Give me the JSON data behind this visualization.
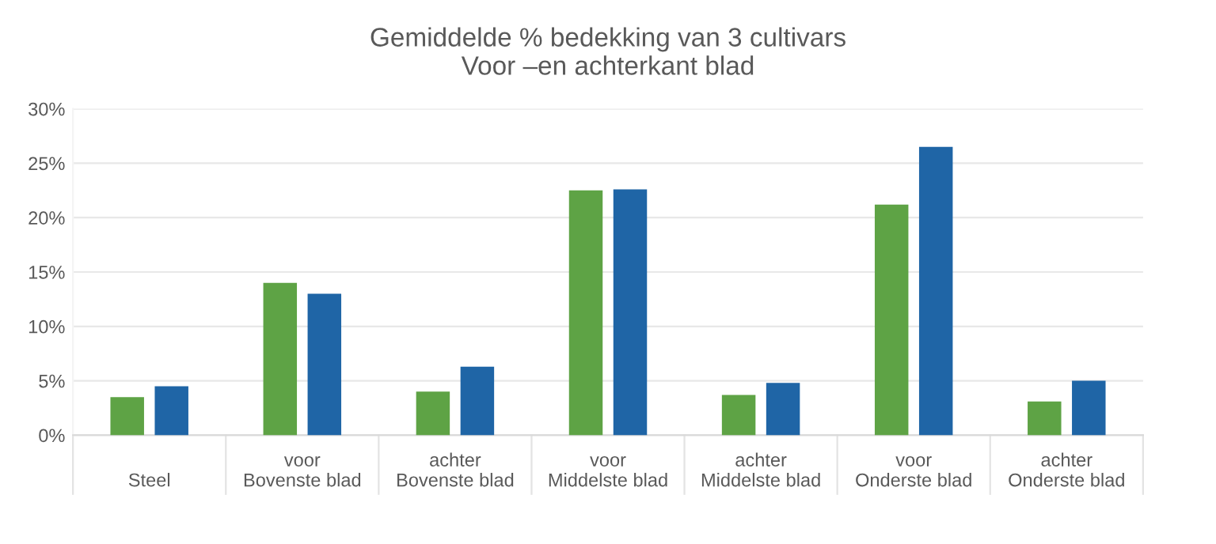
{
  "chart_data": {
    "type": "bar",
    "title": "Gemiddelde % bedekking van 3 cultivars\nVoor –en achterkant blad",
    "categories": [
      "\nSteel",
      "voor\nBovenste blad",
      "achter\nBovenste blad",
      "voor\nMiddelste blad",
      "achter\nMiddelste blad",
      "voor\nOnderste blad",
      "achter\nOnderste blad"
    ],
    "series": [
      {
        "color": "#5ea345",
        "values": [
          3.5,
          14.0,
          4.0,
          22.5,
          3.7,
          21.2,
          3.1
        ]
      },
      {
        "color": "#1f65a6",
        "values": [
          4.5,
          13.0,
          6.3,
          22.6,
          4.8,
          26.5,
          5.0
        ]
      }
    ],
    "ylim": [
      0,
      30
    ],
    "yticks": [
      {
        "value": 0,
        "label": "0%"
      },
      {
        "value": 5,
        "label": "5%"
      },
      {
        "value": 10,
        "label": "10%"
      },
      {
        "value": 15,
        "label": "15%"
      },
      {
        "value": 20,
        "label": "20%"
      },
      {
        "value": 25,
        "label": "25%"
      },
      {
        "value": 30,
        "label": "30%"
      }
    ],
    "grid": "y"
  }
}
